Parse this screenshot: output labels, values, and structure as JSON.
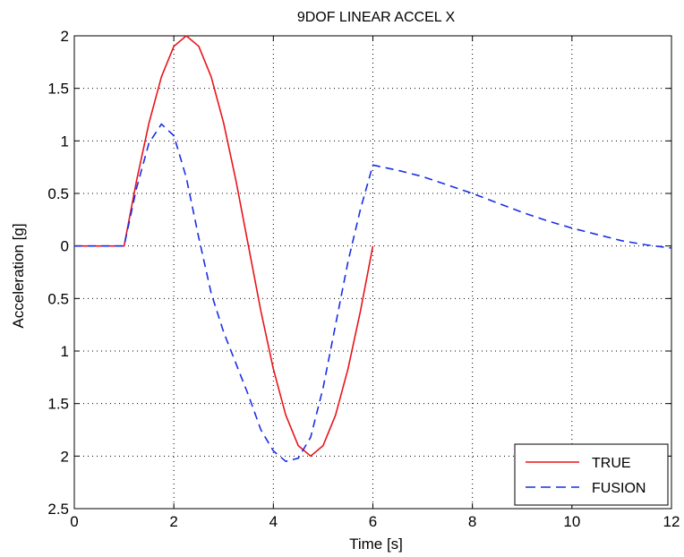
{
  "chart_data": {
    "type": "line",
    "title": "9DOF LINEAR ACCEL X",
    "xlabel": "Time [s]",
    "ylabel": "Acceleration [g]",
    "xlim": [
      0,
      12
    ],
    "ylim": [
      -2.5,
      2
    ],
    "xticks": [
      0,
      2,
      4,
      6,
      8,
      10,
      12
    ],
    "xtick_labels": [
      "0",
      "2",
      "4",
      "6",
      "8",
      "10",
      "12"
    ],
    "yticks": [
      2,
      1.5,
      1,
      0.5,
      0,
      -0.5,
      -1,
      -1.5,
      -2,
      -2.5
    ],
    "ytick_labels": [
      "2",
      "1.5",
      "1",
      "0.5",
      "0",
      "0.5",
      "1",
      "1.5",
      "2",
      "2.5"
    ],
    "grid": true,
    "legend": {
      "position": "bottom-right"
    },
    "series": [
      {
        "name": "TRUE",
        "color": "#e8141b",
        "style": "solid",
        "x": [
          0,
          1,
          1.25,
          1.5,
          1.75,
          2.0,
          2.25,
          2.5,
          2.75,
          3.0,
          3.25,
          3.5,
          3.75,
          4.0,
          4.25,
          4.5,
          4.75,
          5.0,
          5.25,
          5.5,
          5.75,
          6.0
        ],
        "y": [
          0,
          0,
          0.62,
          1.17,
          1.61,
          1.9,
          2.0,
          1.9,
          1.61,
          1.17,
          0.62,
          0.0,
          -0.62,
          -1.17,
          -1.61,
          -1.9,
          -2.0,
          -1.9,
          -1.61,
          -1.17,
          -0.62,
          0.0
        ]
      },
      {
        "name": "FUSION",
        "color": "#1a2ee6",
        "style": "dashed",
        "x": [
          0,
          1.0,
          1.25,
          1.5,
          1.75,
          2.0,
          2.25,
          2.5,
          2.75,
          3.0,
          3.25,
          3.5,
          3.75,
          4.0,
          4.25,
          4.5,
          4.75,
          5.0,
          5.25,
          5.5,
          5.75,
          6.0,
          6.5,
          7.0,
          7.5,
          8.0,
          8.5,
          9.0,
          9.5,
          10.0,
          10.5,
          11.0,
          11.5,
          12.0
        ],
        "y": [
          0,
          0,
          0.55,
          0.98,
          1.16,
          1.05,
          0.65,
          0.08,
          -0.45,
          -0.82,
          -1.12,
          -1.42,
          -1.75,
          -1.95,
          -2.05,
          -2.02,
          -1.82,
          -1.35,
          -0.75,
          -0.15,
          0.35,
          0.77,
          0.72,
          0.66,
          0.58,
          0.5,
          0.41,
          0.32,
          0.24,
          0.17,
          0.11,
          0.05,
          0.01,
          -0.02
        ]
      }
    ]
  }
}
